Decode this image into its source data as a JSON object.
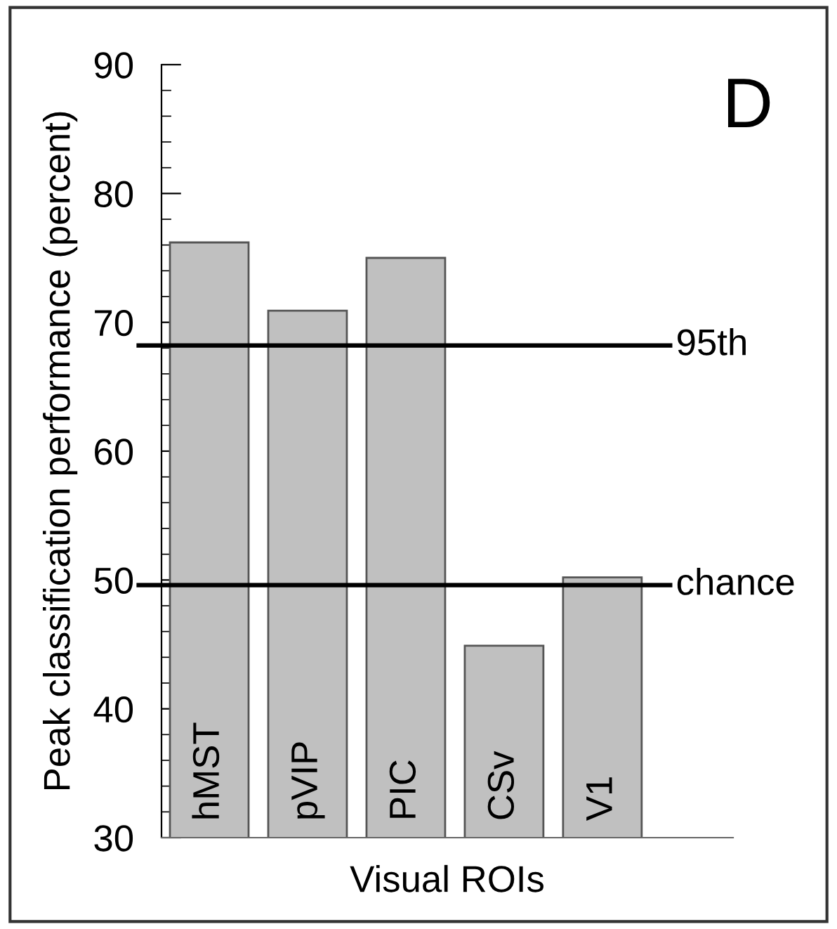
{
  "chart_data": {
    "type": "bar",
    "xlabel": "Visual ROIs",
    "ylabel": "Peak classification performance (percent)",
    "categories": [
      "hMST",
      "pVIP",
      "PIC",
      "CSv",
      "V1"
    ],
    "values": [
      76.2,
      70.9,
      75.0,
      44.9,
      50.2
    ],
    "color": "#c0c0c0",
    "ylim": [
      30,
      90
    ],
    "yticks": [
      30,
      40,
      50,
      60,
      70,
      80,
      90
    ],
    "grid": false,
    "ref_lines": [
      {
        "axis": "y",
        "value": 68.2,
        "label": "95th",
        "color": "#000000"
      },
      {
        "axis": "y",
        "value": 49.6,
        "label": "chance",
        "color": "#000000"
      }
    ],
    "annotations": [
      "D"
    ]
  }
}
